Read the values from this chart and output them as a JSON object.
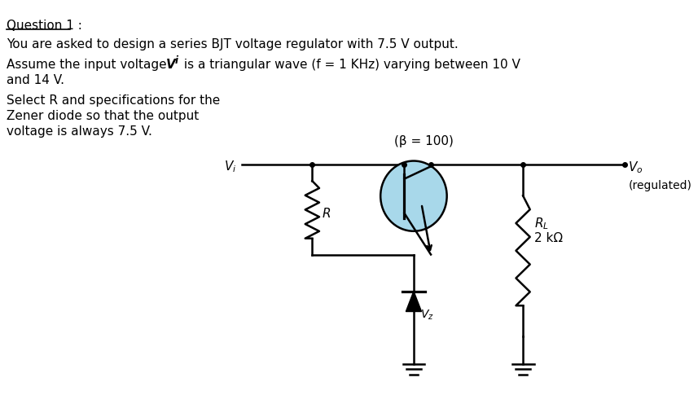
{
  "bg_color": "#ffffff",
  "title": "Question 1 :",
  "line1": "You are asked to design a series BJT voltage regulator with 7.5 V output.",
  "line2a": "Assume the input voltage ",
  "line2b": "V",
  "line2b_sub": "i",
  "line2c": " is a triangular wave (f = 1 KHz) varying between 10 V",
  "line2d": "and 14 V.",
  "line3a": "Select R and specifications for the",
  "line3b": "Zener diode so that the output",
  "line3c": "voltage is always 7.5 V.",
  "beta_label": "(β = 100)",
  "regulated_label": "(regulated)",
  "R_label": "R",
  "RL_val": "2 kΩ",
  "circuit_color": "#000000",
  "bjt_fill": "#a8d8ea",
  "figsize": [
    8.57,
    5.12
  ],
  "dpi": 100
}
